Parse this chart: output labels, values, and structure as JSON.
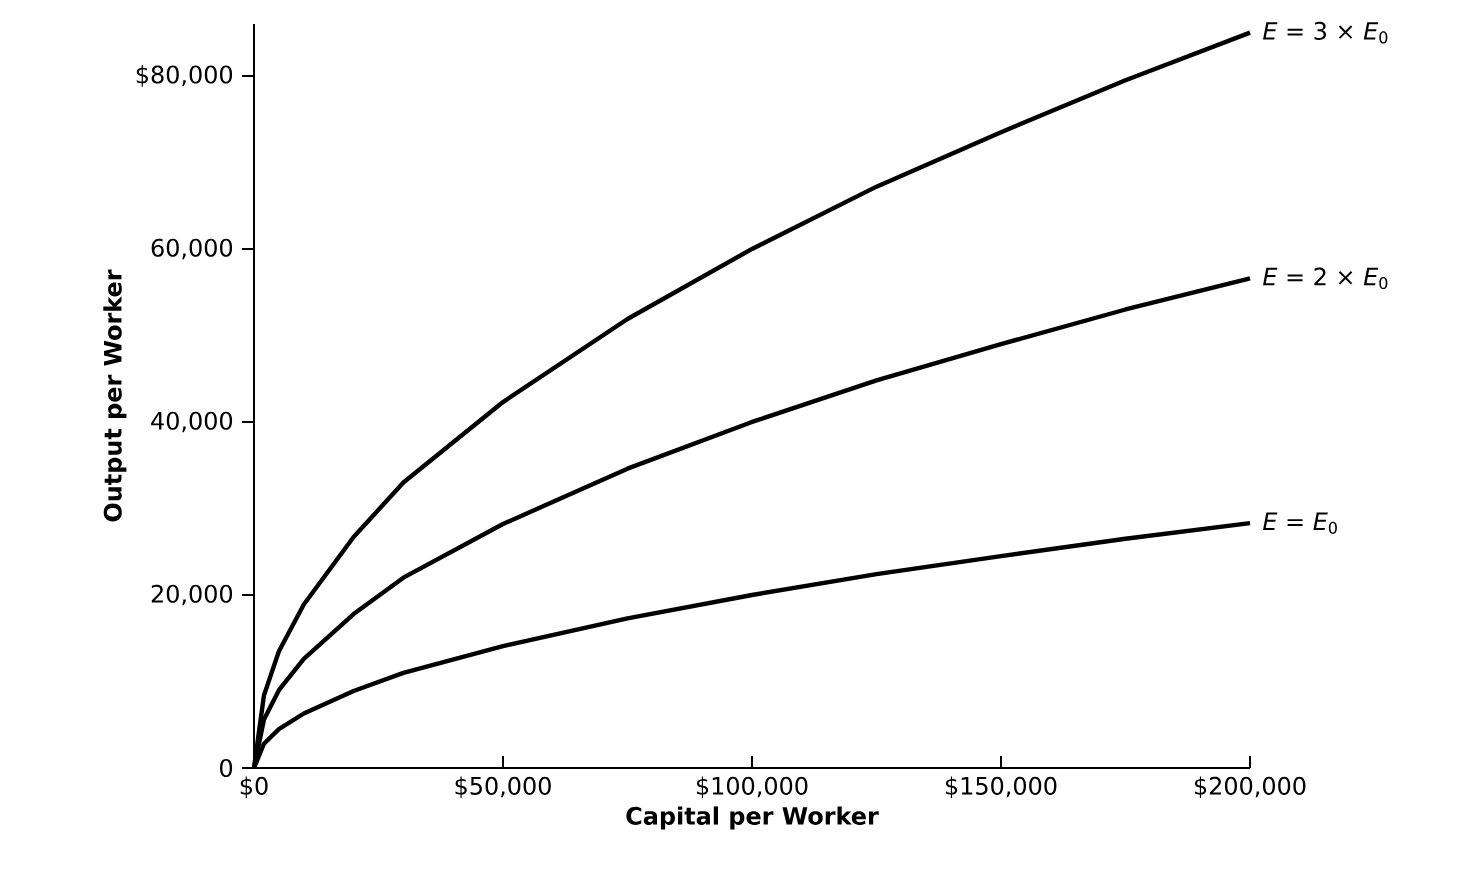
{
  "chart_data": {
    "type": "line",
    "xlabel": "Capital per Worker",
    "ylabel": "Output per Worker",
    "x": [
      0,
      2000,
      5000,
      10000,
      20000,
      30000,
      50000,
      75000,
      100000,
      125000,
      150000,
      175000,
      200000
    ],
    "series": [
      {
        "name": "*E* = *E*$_{0}$",
        "color": "#000000",
        "values": [
          0,
          2800,
          4500,
          6300,
          8900,
          11000,
          14100,
          17300,
          20000,
          22400,
          24500,
          26500,
          28300
        ]
      },
      {
        "name": "*E* = 2 × *E*$_{0}$",
        "color": "#000000",
        "values": [
          0,
          5600,
          9000,
          12600,
          17800,
          22000,
          28200,
          34600,
          40000,
          44800,
          49000,
          53000,
          56600
        ]
      },
      {
        "name": "*E* = 3 × *E*$_{0}$",
        "color": "#000000",
        "values": [
          0,
          8400,
          13500,
          18900,
          26700,
          33000,
          42300,
          51900,
          60000,
          67200,
          73500,
          79500,
          85000
        ]
      }
    ],
    "xlim": [
      0,
      200000
    ],
    "ylim": [
      0,
      86000
    ],
    "xticks": [
      {
        "value": 0,
        "label": "$0"
      },
      {
        "value": 50000,
        "label": "$50,000"
      },
      {
        "value": 100000,
        "label": "$100,000"
      },
      {
        "value": 150000,
        "label": "$150,000"
      },
      {
        "value": 200000,
        "label": "$200,000"
      }
    ],
    "yticks": [
      0,
      {
        "value": 20000,
        "label": "20,000"
      },
      {
        "value": 40000,
        "label": "40,000"
      },
      {
        "value": 60000,
        "label": "60,000"
      },
      {
        "value": 80000,
        "label": "$80,000"
      }
    ],
    "grid": false,
    "legend": false,
    "marker": "none",
    "line_style": "solid"
  }
}
